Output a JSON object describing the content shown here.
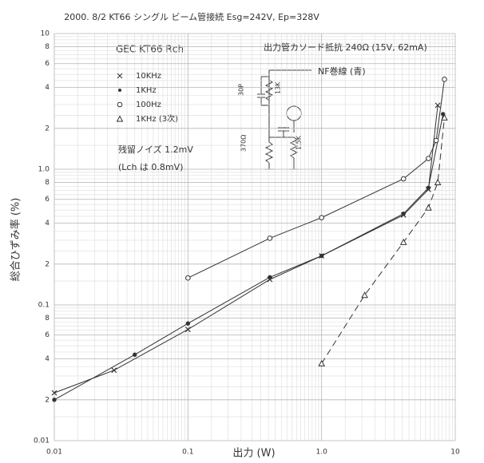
{
  "chart_data": {
    "type": "line",
    "title": "2000. 8/2   KT66 シングル ビーム管接続 Esg=242V, Ep=328V",
    "subtitle": "GEC KT66  Rch",
    "xlabel": "出力 (W)",
    "ylabel": "総合ひずみ率 (%)",
    "annotations": [
      "出力管カソード抵抗 240Ω (15V, 62mA)",
      "NF巻線 (青)",
      "残留ノイズ 1.2mV",
      "(Lch は 0.8mV)",
      "30P",
      "13K",
      "370Ω",
      "1.5K"
    ],
    "xscale": "log",
    "yscale": "log",
    "xlim": [
      0.01,
      10
    ],
    "ylim": [
      0.01,
      10
    ],
    "xticks": [
      0.01,
      0.1,
      {
        "value": 1,
        "label": "1.0"
      },
      10
    ],
    "yticks": [
      0.01,
      {
        "value": 0.02,
        "label": "2"
      },
      {
        "value": 0.04,
        "label": "4"
      },
      {
        "value": 0.06,
        "label": "6"
      },
      {
        "value": 0.08,
        "label": "8"
      },
      0.1,
      {
        "value": 0.2,
        "label": "2"
      },
      {
        "value": 0.4,
        "label": "4"
      },
      {
        "value": 0.6,
        "label": "6"
      },
      {
        "value": 0.8,
        "label": "8"
      },
      {
        "value": 1,
        "label": "1.0"
      },
      {
        "value": 2,
        "label": "2"
      },
      {
        "value": 4,
        "label": "4"
      },
      {
        "value": 6,
        "label": "6"
      },
      {
        "value": 8,
        "label": "8"
      },
      10
    ],
    "grid": true,
    "minor_grid": true,
    "legend": "upper left",
    "series": [
      {
        "name": "10KHz",
        "color": "#333333",
        "marker": "x",
        "dashed": false,
        "x": [
          0.01,
          0.028,
          0.1,
          0.41,
          1.0,
          4.1,
          6.3,
          7.4
        ],
        "values": [
          0.0225,
          0.033,
          0.066,
          0.154,
          0.23,
          0.46,
          0.71,
          2.96
        ]
      },
      {
        "name": "1KHz",
        "color": "#333333",
        "marker": "dot",
        "dashed": false,
        "x": [
          0.01,
          0.04,
          0.1,
          0.41,
          1.0,
          4.1,
          6.3,
          8.1
        ],
        "values": [
          0.02,
          0.043,
          0.073,
          0.16,
          0.23,
          0.47,
          0.73,
          2.55
        ]
      },
      {
        "name": "100Hz",
        "color": "#333333",
        "marker": "circle",
        "dashed": false,
        "x": [
          0.1,
          0.41,
          1.0,
          4.1,
          6.3,
          7.2,
          8.3
        ],
        "values": [
          0.158,
          0.31,
          0.44,
          0.85,
          1.2,
          1.63,
          4.6
        ]
      },
      {
        "name": "1KHz (3次)",
        "color": "#333333",
        "marker": "triangle",
        "dashed": true,
        "x": [
          1.0,
          2.1,
          4.1,
          6.3,
          7.4,
          8.3
        ],
        "values": [
          0.037,
          0.118,
          0.29,
          0.52,
          0.8,
          2.4
        ]
      }
    ]
  }
}
